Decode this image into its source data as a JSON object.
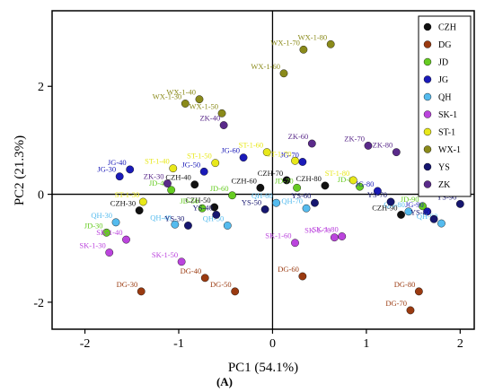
{
  "chart_data": {
    "type": "scatter",
    "xlabel": "PC1 (54.1%)",
    "ylabel": "PC2 (21.3%)",
    "xlim": [
      -2.35,
      2.15
    ],
    "ylim": [
      -2.5,
      3.4
    ],
    "xticks": [
      -2,
      -1,
      0,
      1,
      2
    ],
    "yticks": [
      -2,
      0,
      2
    ],
    "panel_label": "(A)",
    "legend_position": "top-right",
    "series": [
      {
        "name": "CZH",
        "color": "#111111",
        "points": [
          {
            "label": "CZH-30",
            "x": -1.42,
            "y": -0.3
          },
          {
            "label": "CZH-40",
            "x": -0.83,
            "y": 0.18
          },
          {
            "label": "CZH-50",
            "x": -0.62,
            "y": -0.24
          },
          {
            "label": "CZH-60",
            "x": -0.13,
            "y": 0.12
          },
          {
            "label": "CZH-70",
            "x": 0.15,
            "y": 0.26
          },
          {
            "label": "CZH-80",
            "x": 0.56,
            "y": 0.16
          },
          {
            "label": "CZH-90",
            "x": 1.37,
            "y": -0.38
          }
        ]
      },
      {
        "name": "DG",
        "color": "#9a3a10",
        "points": [
          {
            "label": "DG-30",
            "x": -1.4,
            "y": -1.8
          },
          {
            "label": "DG-40",
            "x": -0.72,
            "y": -1.55
          },
          {
            "label": "DG-50",
            "x": -0.4,
            "y": -1.8
          },
          {
            "label": "DG-60",
            "x": 0.32,
            "y": -1.52
          },
          {
            "label": "DG-70",
            "x": 1.47,
            "y": -2.15
          },
          {
            "label": "DG-80",
            "x": 1.56,
            "y": -1.8
          }
        ]
      },
      {
        "name": "JD",
        "color": "#66cc22",
        "points": [
          {
            "label": "JD-30",
            "x": -1.77,
            "y": -0.71
          },
          {
            "label": "JD-40",
            "x": -1.08,
            "y": 0.08
          },
          {
            "label": "JD-50",
            "x": -0.75,
            "y": -0.26
          },
          {
            "label": "JD-60",
            "x": -0.43,
            "y": -0.02
          },
          {
            "label": "JD-70",
            "x": 0.26,
            "y": 0.12
          },
          {
            "label": "JD-80",
            "x": 0.93,
            "y": 0.14
          },
          {
            "label": "JD-90",
            "x": 1.6,
            "y": -0.22
          }
        ]
      },
      {
        "name": "JG",
        "color": "#1a1ab8",
        "points": [
          {
            "label": "JG-30",
            "x": -1.63,
            "y": 0.33
          },
          {
            "label": "JG-40",
            "x": -1.52,
            "y": 0.46
          },
          {
            "label": "JG-50",
            "x": -0.73,
            "y": 0.42
          },
          {
            "label": "JG-60",
            "x": -0.31,
            "y": 0.68
          },
          {
            "label": "JG-70",
            "x": 0.32,
            "y": 0.6
          },
          {
            "label": "JG-80",
            "x": 1.12,
            "y": 0.06
          },
          {
            "label": "JG-90",
            "x": 1.65,
            "y": -0.32
          }
        ]
      },
      {
        "name": "QH",
        "color": "#55bbee",
        "points": [
          {
            "label": "QH-30",
            "x": -1.67,
            "y": -0.52
          },
          {
            "label": "QH-40",
            "x": -1.04,
            "y": -0.56
          },
          {
            "label": "QH-50",
            "x": -0.48,
            "y": -0.58
          },
          {
            "label": "QH-60",
            "x": 0.04,
            "y": -0.16
          },
          {
            "label": "QH-70",
            "x": 0.36,
            "y": -0.26
          },
          {
            "label": "QH-80",
            "x": 1.45,
            "y": -0.32
          },
          {
            "label": "QH-90",
            "x": 1.8,
            "y": -0.54
          }
        ]
      },
      {
        "name": "SK-1",
        "color": "#bb44dd",
        "points": [
          {
            "label": "SK-1-30",
            "x": -1.74,
            "y": -1.08
          },
          {
            "label": "SK-1-40",
            "x": -1.56,
            "y": -0.84
          },
          {
            "label": "SK-1-50",
            "x": -0.97,
            "y": -1.25
          },
          {
            "label": "SK-1-60",
            "x": 0.24,
            "y": -0.9
          },
          {
            "label": "SK-1-70",
            "x": 0.66,
            "y": -0.8
          },
          {
            "label": "SK-1-80",
            "x": 0.74,
            "y": -0.78
          }
        ]
      },
      {
        "name": "ST-1",
        "color": "#e8e81a",
        "points": [
          {
            "label": "ST-1-30",
            "x": -1.38,
            "y": -0.14
          },
          {
            "label": "ST-1-40",
            "x": -1.06,
            "y": 0.48
          },
          {
            "label": "ST-1-50",
            "x": -0.61,
            "y": 0.58
          },
          {
            "label": "ST-1-60",
            "x": -0.06,
            "y": 0.78
          },
          {
            "label": "ST-1-70",
            "x": 0.24,
            "y": 0.62
          },
          {
            "label": "ST-1-80",
            "x": 0.86,
            "y": 0.26
          }
        ]
      },
      {
        "name": "WX-1",
        "color": "#8a8a1a",
        "points": [
          {
            "label": "WX-1-30",
            "x": -0.93,
            "y": 1.68
          },
          {
            "label": "WX-1-40",
            "x": -0.78,
            "y": 1.76
          },
          {
            "label": "WX-1-50",
            "x": -0.54,
            "y": 1.5
          },
          {
            "label": "WX-1-60",
            "x": 0.12,
            "y": 2.24
          },
          {
            "label": "WX-1-70",
            "x": 0.33,
            "y": 2.68
          },
          {
            "label": "WX-1-80",
            "x": 0.62,
            "y": 2.78
          }
        ]
      },
      {
        "name": "YS",
        "color": "#161670",
        "points": [
          {
            "label": "YS-30",
            "x": -0.9,
            "y": -0.58
          },
          {
            "label": "YS-40",
            "x": -0.6,
            "y": -0.38
          },
          {
            "label": "YS-50",
            "x": -0.08,
            "y": -0.28
          },
          {
            "label": "YS-60",
            "x": 0.45,
            "y": -0.16
          },
          {
            "label": "YS-70",
            "x": 1.26,
            "y": -0.14
          },
          {
            "label": "YS-80",
            "x": 1.72,
            "y": -0.46
          },
          {
            "label": "YS-90",
            "x": 2.0,
            "y": -0.18
          }
        ]
      },
      {
        "name": "ZK",
        "color": "#5a2a8a",
        "points": [
          {
            "label": "ZK-30",
            "x": -1.12,
            "y": 0.2
          },
          {
            "label": "ZK-40",
            "x": -0.52,
            "y": 1.28
          },
          {
            "label": "ZK-60",
            "x": 0.42,
            "y": 0.94
          },
          {
            "label": "ZK-70",
            "x": 1.02,
            "y": 0.9
          },
          {
            "label": "ZK-80",
            "x": 1.32,
            "y": 0.78
          }
        ]
      }
    ]
  }
}
